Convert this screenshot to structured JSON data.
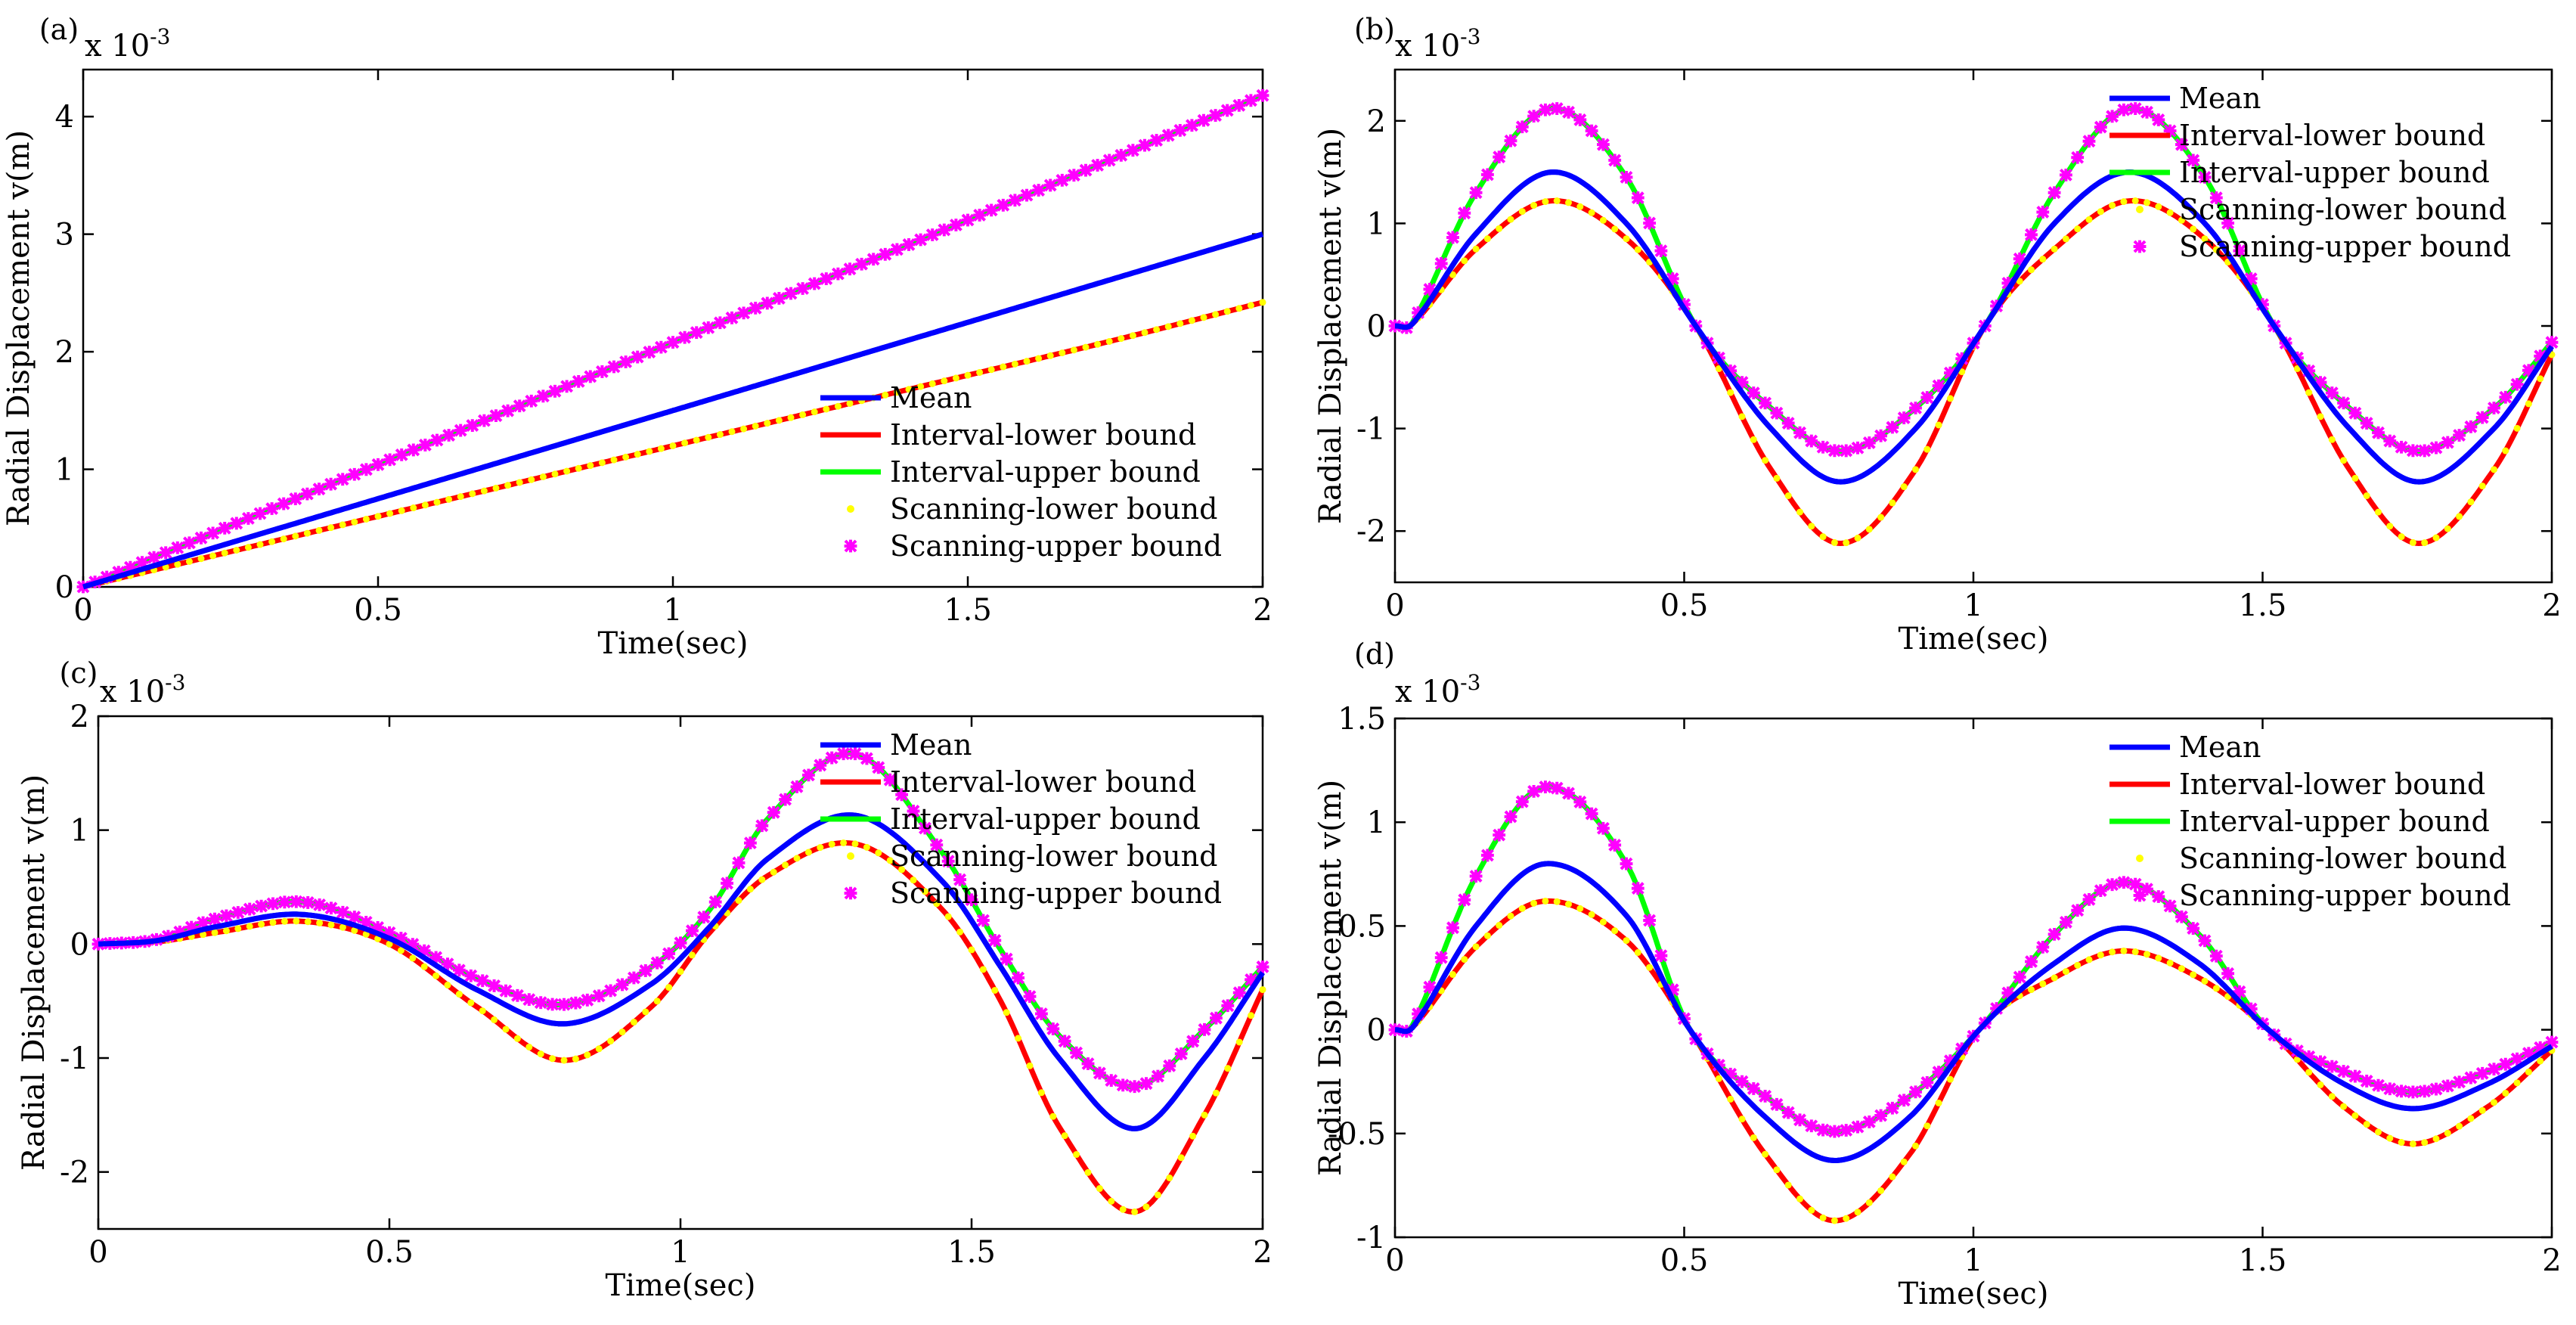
{
  "chart_data": [
    {
      "type": "line",
      "panel_label": "(a)",
      "xlabel": "Time(sec)",
      "ylabel": "Radial Displacement v(m)",
      "y_scale_label": "x 10",
      "y_scale_exp": "-3",
      "xlim": [
        0,
        2
      ],
      "ylim": [
        0,
        4.4
      ],
      "xticks": [
        0,
        0.5,
        1,
        1.5,
        2
      ],
      "xtick_labels": [
        "0",
        "0.5",
        "1",
        "1.5",
        "2"
      ],
      "yticks": [
        0,
        1,
        2,
        3,
        4
      ],
      "ytick_labels": [
        "0",
        "1",
        "2",
        "3",
        "4"
      ],
      "legend_position": "bottom-right",
      "series": [
        {
          "name": "Mean",
          "color": "#0000ff",
          "style": "line",
          "x": [
            0,
            0.25,
            0.5,
            0.75,
            1,
            1.25,
            1.5,
            1.75,
            2
          ],
          "y": [
            0,
            0.375,
            0.75,
            1.125,
            1.5,
            1.875,
            2.25,
            2.625,
            3.0
          ]
        },
        {
          "name": "Interval-lower bound",
          "color": "#ff0000",
          "style": "line",
          "x": [
            0,
            0.25,
            0.5,
            0.75,
            1,
            1.25,
            1.5,
            1.75,
            2
          ],
          "y": [
            0,
            0.3,
            0.6,
            0.9,
            1.2,
            1.5,
            1.8,
            2.1,
            2.42
          ]
        },
        {
          "name": "Interval-upper bound",
          "color": "#00ff00",
          "style": "line",
          "x": [
            0,
            0.25,
            0.5,
            0.75,
            1,
            1.25,
            1.5,
            1.75,
            2
          ],
          "y": [
            0,
            0.52,
            1.04,
            1.56,
            2.08,
            2.6,
            3.12,
            3.65,
            4.18
          ]
        },
        {
          "name": "Scanning-lower bound",
          "color": "#ffff00",
          "style": "dot",
          "x": [
            0,
            0.25,
            0.5,
            0.75,
            1,
            1.25,
            1.5,
            1.75,
            2
          ],
          "y": [
            0,
            0.3,
            0.6,
            0.9,
            1.2,
            1.5,
            1.8,
            2.1,
            2.42
          ]
        },
        {
          "name": "Scanning-upper bound",
          "color": "#ff00ff",
          "style": "star",
          "x": [
            0,
            0.25,
            0.5,
            0.75,
            1,
            1.25,
            1.5,
            1.75,
            2
          ],
          "y": [
            0,
            0.52,
            1.04,
            1.56,
            2.08,
            2.6,
            3.12,
            3.65,
            4.18
          ]
        }
      ]
    },
    {
      "type": "line",
      "panel_label": "(b)",
      "xlabel": "Time(sec)",
      "ylabel": "Radial Displacement v(m)",
      "y_scale_label": "x 10",
      "y_scale_exp": "-3",
      "xlim": [
        0,
        2
      ],
      "ylim": [
        -2.5,
        2.5
      ],
      "xticks": [
        0,
        0.5,
        1,
        1.5,
        2
      ],
      "xtick_labels": [
        "0",
        "0.5",
        "1",
        "1.5",
        "2"
      ],
      "yticks": [
        -2,
        -1,
        0,
        1,
        2
      ],
      "ytick_labels": [
        "-2",
        "-1",
        "0",
        "1",
        "2"
      ],
      "legend_position": "top-right",
      "series": [
        {
          "name": "Mean",
          "color": "#0000ff",
          "style": "line",
          "x": [
            0,
            0.03,
            0.14,
            0.27,
            0.4,
            0.52,
            0.65,
            0.77,
            0.9,
            1.02,
            1.14,
            1.27,
            1.4,
            1.52,
            1.65,
            1.77,
            1.9,
            2
          ],
          "y": [
            0,
            0.02,
            0.9,
            1.5,
            1.0,
            0.0,
            -1.0,
            -1.52,
            -1.0,
            0.0,
            1.0,
            1.5,
            1.0,
            0.0,
            -1.0,
            -1.52,
            -1.0,
            -0.2
          ]
        },
        {
          "name": "Interval-lower bound",
          "color": "#ff0000",
          "style": "line",
          "x": [
            0,
            0.03,
            0.14,
            0.27,
            0.4,
            0.52,
            0.65,
            0.77,
            0.9,
            1.02,
            1.14,
            1.27,
            1.4,
            1.52,
            1.65,
            1.77,
            1.9,
            2
          ],
          "y": [
            0,
            0.02,
            0.75,
            1.22,
            0.85,
            0.0,
            -1.4,
            -2.12,
            -1.4,
            0.0,
            0.75,
            1.22,
            0.85,
            0.0,
            -1.4,
            -2.12,
            -1.4,
            -0.28
          ]
        },
        {
          "name": "Interval-upper bound",
          "color": "#00ff00",
          "style": "line",
          "x": [
            0,
            0.03,
            0.14,
            0.27,
            0.4,
            0.52,
            0.65,
            0.77,
            0.9,
            1.02,
            1.14,
            1.27,
            1.4,
            1.52,
            1.65,
            1.77,
            1.9,
            2
          ],
          "y": [
            0,
            0.03,
            1.3,
            2.12,
            1.45,
            0.0,
            -0.8,
            -1.22,
            -0.8,
            0.0,
            1.3,
            2.12,
            1.45,
            0.0,
            -0.8,
            -1.22,
            -0.8,
            -0.16
          ]
        },
        {
          "name": "Scanning-lower bound",
          "color": "#ffff00",
          "style": "dot",
          "x": [
            0,
            0.03,
            0.14,
            0.27,
            0.4,
            0.52,
            0.65,
            0.77,
            0.9,
            1.02,
            1.14,
            1.27,
            1.4,
            1.52,
            1.65,
            1.77,
            1.9,
            2
          ],
          "y": [
            0,
            0.02,
            0.75,
            1.22,
            0.85,
            0.0,
            -1.4,
            -2.12,
            -1.4,
            0.0,
            0.75,
            1.22,
            0.85,
            0.0,
            -1.4,
            -2.12,
            -1.4,
            -0.28
          ]
        },
        {
          "name": "Scanning-upper bound",
          "color": "#ff00ff",
          "style": "star",
          "x": [
            0,
            0.03,
            0.14,
            0.27,
            0.4,
            0.52,
            0.65,
            0.77,
            0.9,
            1.02,
            1.14,
            1.27,
            1.4,
            1.52,
            1.65,
            1.77,
            1.9,
            2
          ],
          "y": [
            0,
            0.03,
            1.3,
            2.12,
            1.45,
            0.0,
            -0.8,
            -1.22,
            -0.8,
            0.0,
            1.3,
            2.12,
            1.45,
            0.0,
            -0.8,
            -1.22,
            -0.8,
            -0.16
          ]
        }
      ]
    },
    {
      "type": "line",
      "panel_label": "(c)",
      "xlabel": "Time(sec)",
      "ylabel": "Radial Displacement v(m)",
      "y_scale_label": "x 10",
      "y_scale_exp": "-3",
      "xlim": [
        0,
        2
      ],
      "ylim": [
        -2.5,
        2.0
      ],
      "xticks": [
        0,
        0.5,
        1,
        1.5,
        2
      ],
      "xtick_labels": [
        "0",
        "0.5",
        "1",
        "1.5",
        "2"
      ],
      "yticks": [
        -2,
        -1,
        0,
        1,
        2
      ],
      "ytick_labels": [
        "-2",
        "-1",
        "0",
        "1",
        "2"
      ],
      "legend_position": "top-right",
      "series": [
        {
          "name": "Mean",
          "color": "#0000ff",
          "style": "line",
          "x": [
            0,
            0.1,
            0.2,
            0.35,
            0.5,
            0.65,
            0.8,
            0.95,
            1.05,
            1.15,
            1.3,
            1.45,
            1.55,
            1.65,
            1.78,
            1.9,
            2
          ],
          "y": [
            0,
            0.03,
            0.15,
            0.26,
            0.05,
            -0.4,
            -0.7,
            -0.35,
            0.15,
            0.75,
            1.13,
            0.55,
            -0.2,
            -1.0,
            -1.62,
            -1.0,
            -0.25
          ]
        },
        {
          "name": "Interval-lower bound",
          "color": "#ff0000",
          "style": "line",
          "x": [
            0,
            0.1,
            0.2,
            0.35,
            0.5,
            0.65,
            0.8,
            0.95,
            1.05,
            1.15,
            1.3,
            1.45,
            1.55,
            1.65,
            1.78,
            1.9,
            2
          ],
          "y": [
            0,
            0.02,
            0.1,
            0.2,
            0.0,
            -0.55,
            -1.02,
            -0.55,
            0.1,
            0.6,
            0.88,
            0.3,
            -0.5,
            -1.6,
            -2.35,
            -1.5,
            -0.4
          ]
        },
        {
          "name": "Interval-upper bound",
          "color": "#00ff00",
          "style": "line",
          "x": [
            0,
            0.1,
            0.2,
            0.35,
            0.5,
            0.65,
            0.8,
            0.95,
            1.05,
            1.15,
            1.3,
            1.45,
            1.55,
            1.65,
            1.78,
            1.9,
            2
          ],
          "y": [
            0,
            0.04,
            0.22,
            0.37,
            0.1,
            -0.3,
            -0.53,
            -0.2,
            0.3,
            1.1,
            1.67,
            0.8,
            -0.05,
            -0.8,
            -1.25,
            -0.75,
            -0.2
          ]
        },
        {
          "name": "Scanning-lower bound",
          "color": "#ffff00",
          "style": "dot",
          "x": [
            0,
            0.1,
            0.2,
            0.35,
            0.5,
            0.65,
            0.8,
            0.95,
            1.05,
            1.15,
            1.3,
            1.45,
            1.55,
            1.65,
            1.78,
            1.9,
            2
          ],
          "y": [
            0,
            0.02,
            0.1,
            0.2,
            0.0,
            -0.55,
            -1.02,
            -0.55,
            0.1,
            0.6,
            0.88,
            0.3,
            -0.5,
            -1.6,
            -2.35,
            -1.5,
            -0.4
          ]
        },
        {
          "name": "Scanning-upper bound",
          "color": "#ff00ff",
          "style": "star",
          "x": [
            0,
            0.1,
            0.2,
            0.35,
            0.5,
            0.65,
            0.8,
            0.95,
            1.05,
            1.15,
            1.3,
            1.45,
            1.55,
            1.65,
            1.78,
            1.9,
            2
          ],
          "y": [
            0,
            0.04,
            0.22,
            0.37,
            0.1,
            -0.3,
            -0.53,
            -0.2,
            0.3,
            1.1,
            1.67,
            0.8,
            -0.05,
            -0.8,
            -1.25,
            -0.75,
            -0.2
          ]
        }
      ]
    },
    {
      "type": "line",
      "panel_label": "(d)",
      "xlabel": "Time(sec)",
      "ylabel": "Radial Displacement v(m)",
      "y_scale_label": "x 10",
      "y_scale_exp": "-3",
      "xlim": [
        0,
        2
      ],
      "ylim": [
        -1.0,
        1.5
      ],
      "xticks": [
        0,
        0.5,
        1,
        1.5,
        2
      ],
      "xtick_labels": [
        "0",
        "0.5",
        "1",
        "1.5",
        "2"
      ],
      "yticks": [
        -1,
        -0.5,
        0,
        0.5,
        1,
        1.5
      ],
      "ytick_labels": [
        "-1",
        "-0.5",
        "0",
        "0.5",
        "1",
        "1.5"
      ],
      "legend_position": "top-right",
      "series": [
        {
          "name": "Mean",
          "color": "#0000ff",
          "style": "line",
          "x": [
            0,
            0.03,
            0.14,
            0.26,
            0.4,
            0.51,
            0.64,
            0.76,
            0.89,
            1.01,
            1.14,
            1.26,
            1.39,
            1.51,
            1.64,
            1.76,
            1.89,
            2
          ],
          "y": [
            0,
            0.01,
            0.5,
            0.8,
            0.55,
            0.0,
            -0.42,
            -0.63,
            -0.42,
            0.0,
            0.32,
            0.49,
            0.32,
            0.0,
            -0.26,
            -0.38,
            -0.26,
            -0.08
          ]
        },
        {
          "name": "Interval-lower bound",
          "color": "#ff0000",
          "style": "line",
          "x": [
            0,
            0.03,
            0.14,
            0.26,
            0.4,
            0.51,
            0.64,
            0.76,
            0.89,
            1.01,
            1.14,
            1.26,
            1.39,
            1.51,
            1.64,
            1.76,
            1.89,
            2
          ],
          "y": [
            0,
            0.01,
            0.4,
            0.62,
            0.43,
            0.0,
            -0.6,
            -0.92,
            -0.6,
            0.0,
            0.25,
            0.38,
            0.25,
            0.0,
            -0.37,
            -0.55,
            -0.37,
            -0.1
          ]
        },
        {
          "name": "Interval-upper bound",
          "color": "#00ff00",
          "style": "line",
          "x": [
            0,
            0.03,
            0.14,
            0.26,
            0.4,
            0.51,
            0.64,
            0.76,
            0.89,
            1.01,
            1.14,
            1.26,
            1.39,
            1.51,
            1.64,
            1.76,
            1.89,
            2
          ],
          "y": [
            0,
            0.02,
            0.74,
            1.17,
            0.8,
            0.0,
            -0.32,
            -0.49,
            -0.32,
            0.0,
            0.46,
            0.71,
            0.46,
            0.0,
            -0.2,
            -0.3,
            -0.2,
            -0.06
          ]
        },
        {
          "name": "Scanning-lower bound",
          "color": "#ffff00",
          "style": "dot",
          "x": [
            0,
            0.03,
            0.14,
            0.26,
            0.4,
            0.51,
            0.64,
            0.76,
            0.89,
            1.01,
            1.14,
            1.26,
            1.39,
            1.51,
            1.64,
            1.76,
            1.89,
            2
          ],
          "y": [
            0,
            0.01,
            0.4,
            0.62,
            0.43,
            0.0,
            -0.6,
            -0.92,
            -0.6,
            0.0,
            0.25,
            0.38,
            0.25,
            0.0,
            -0.37,
            -0.55,
            -0.37,
            -0.1
          ]
        },
        {
          "name": "Scanning-upper bound",
          "color": "#ff00ff",
          "style": "star",
          "x": [
            0,
            0.03,
            0.14,
            0.26,
            0.4,
            0.51,
            0.64,
            0.76,
            0.89,
            1.01,
            1.14,
            1.26,
            1.39,
            1.51,
            1.64,
            1.76,
            1.89,
            2
          ],
          "y": [
            0,
            0.02,
            0.74,
            1.17,
            0.8,
            0.0,
            -0.32,
            -0.49,
            -0.32,
            0.0,
            0.46,
            0.71,
            0.46,
            0.0,
            -0.2,
            -0.3,
            -0.2,
            -0.06
          ]
        }
      ]
    }
  ]
}
